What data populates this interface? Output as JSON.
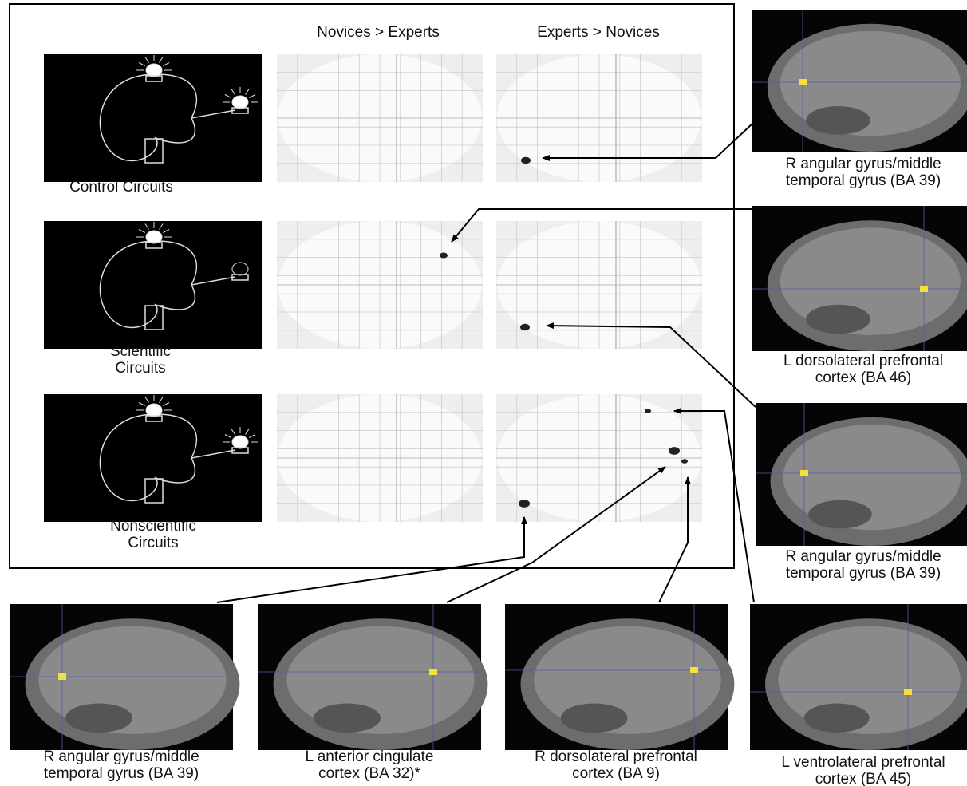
{
  "header": {
    "columns": [
      "Novices > Experts",
      "Experts > Novices"
    ]
  },
  "rows": [
    {
      "label": [
        "Control Circuits"
      ]
    },
    {
      "label": [
        "Scientific",
        "Circuits"
      ]
    },
    {
      "label": [
        "Nonscientific",
        "Circuits"
      ]
    }
  ],
  "regions": [
    {
      "caption": [
        "R angular gyrus/middle",
        "temporal gyrus (BA 39)"
      ]
    },
    {
      "caption": [
        "L dorsolateral prefrontal",
        "cortex (BA 46)"
      ]
    },
    {
      "caption": [
        "R angular gyrus/middle",
        "temporal gyrus (BA 39)"
      ]
    },
    {
      "caption": [
        "L ventrolateral prefrontal",
        "cortex (BA 45)"
      ]
    },
    {
      "caption": [
        "R angular gyrus/middle",
        "temporal gyrus (BA 39)"
      ]
    },
    {
      "caption": [
        "L anterior cingulate",
        "cortex (BA 32)*"
      ]
    },
    {
      "caption": [
        "R dorsolateral prefrontal",
        "cortex (BA 9)"
      ]
    }
  ]
}
